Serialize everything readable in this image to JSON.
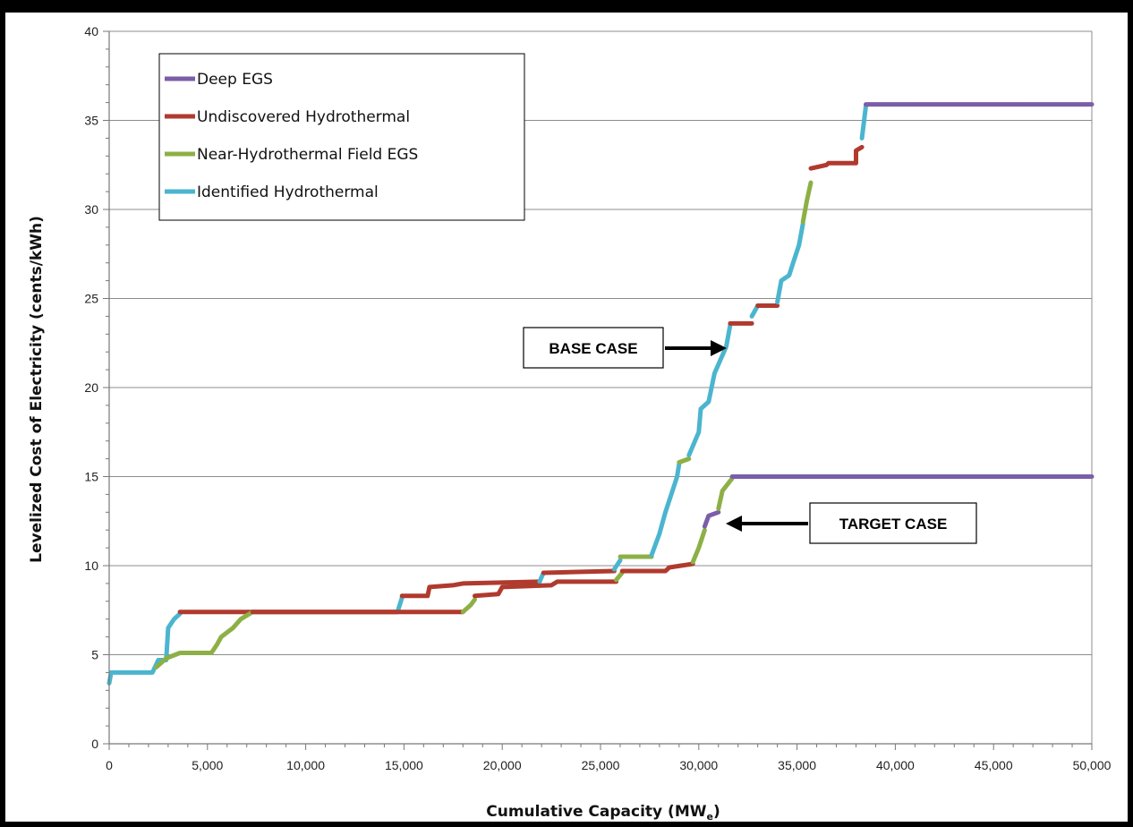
{
  "chart_data": {
    "type": "line",
    "xlabel": "Cumulative Capacity (MW",
    "xlabel_sub": "e",
    "xlabel_end": ")",
    "ylabel": "Levelized Cost of Electricity (cents/kWh)",
    "xlim": [
      0,
      50000
    ],
    "ylim": [
      0,
      40
    ],
    "x_ticks": [
      0,
      5000,
      10000,
      15000,
      20000,
      25000,
      30000,
      35000,
      40000,
      45000,
      50000
    ],
    "x_tick_labels": [
      "0",
      "5,000",
      "10,000",
      "15,000",
      "20,000",
      "25,000",
      "30,000",
      "35,000",
      "40,000",
      "45,000",
      "50,000"
    ],
    "y_ticks": [
      0,
      5,
      10,
      15,
      20,
      25,
      30,
      35,
      40
    ],
    "y_tick_labels": [
      "0",
      "5",
      "10",
      "15",
      "20",
      "25",
      "30",
      "35",
      "40"
    ],
    "grid": "horizontal",
    "legend_position": "top-left",
    "legend": [
      {
        "label": "Deep EGS",
        "color": "#7b5ea7"
      },
      {
        "label": "Undiscovered Hydrothermal",
        "color": "#b03a2e"
      },
      {
        "label": "Near-Hydrothermal Field EGS",
        "color": "#8db046"
      },
      {
        "label": "Identified Hydrothermal",
        "color": "#4bb5cf"
      }
    ],
    "annotations": [
      {
        "label": "BASE CASE",
        "points_to": [
          31600,
          22.3
        ]
      },
      {
        "label": "TARGET CASE",
        "points_to": [
          31000,
          12.5
        ]
      }
    ],
    "curves": [
      {
        "name": "BASE CASE",
        "segments": [
          {
            "color": "#4bb5cf",
            "points": [
              [
                0,
                3.4
              ],
              [
                100,
                4.0
              ],
              [
                2200,
                4.0
              ],
              [
                2500,
                4.7
              ],
              [
                2900,
                4.7
              ],
              [
                3000,
                6.5
              ],
              [
                3300,
                7.0
              ],
              [
                3600,
                7.3
              ]
            ]
          },
          {
            "color": "#b03a2e",
            "points": [
              [
                3600,
                7.4
              ],
              [
                14700,
                7.4
              ]
            ]
          },
          {
            "color": "#4bb5cf",
            "points": [
              [
                14700,
                7.5
              ],
              [
                14900,
                8.2
              ]
            ]
          },
          {
            "color": "#b03a2e",
            "points": [
              [
                14900,
                8.3
              ],
              [
                16200,
                8.3
              ],
              [
                16300,
                8.8
              ],
              [
                17500,
                8.9
              ],
              [
                18000,
                9.0
              ],
              [
                21900,
                9.1
              ]
            ]
          },
          {
            "color": "#4bb5cf",
            "points": [
              [
                21900,
                9.1
              ],
              [
                22100,
                9.6
              ]
            ]
          },
          {
            "color": "#b03a2e",
            "points": [
              [
                22100,
                9.6
              ],
              [
                25700,
                9.7
              ]
            ]
          },
          {
            "color": "#4bb5cf",
            "points": [
              [
                25700,
                9.8
              ],
              [
                26000,
                10.3
              ]
            ]
          },
          {
            "color": "#8db046",
            "points": [
              [
                26000,
                10.5
              ],
              [
                27600,
                10.5
              ]
            ]
          },
          {
            "color": "#4bb5cf",
            "points": [
              [
                27600,
                10.6
              ],
              [
                28000,
                11.8
              ],
              [
                28300,
                13.0
              ],
              [
                28600,
                14.0
              ],
              [
                28900,
                15.0
              ],
              [
                29000,
                15.7
              ]
            ]
          },
          {
            "color": "#8db046",
            "points": [
              [
                29000,
                15.8
              ],
              [
                29500,
                16.0
              ]
            ]
          },
          {
            "color": "#4bb5cf",
            "points": [
              [
                29500,
                16.2
              ],
              [
                30000,
                17.5
              ],
              [
                30100,
                18.8
              ],
              [
                30500,
                19.2
              ],
              [
                30800,
                20.8
              ],
              [
                31400,
                22.3
              ],
              [
                31600,
                23.5
              ]
            ]
          },
          {
            "color": "#b03a2e",
            "points": [
              [
                31600,
                23.6
              ],
              [
                32700,
                23.6
              ]
            ]
          },
          {
            "color": "#4bb5cf",
            "points": [
              [
                32700,
                24.0
              ],
              [
                33000,
                24.6
              ]
            ]
          },
          {
            "color": "#b03a2e",
            "points": [
              [
                33000,
                24.6
              ],
              [
                34000,
                24.6
              ]
            ]
          },
          {
            "color": "#4bb5cf",
            "points": [
              [
                34000,
                24.8
              ],
              [
                34200,
                26.0
              ],
              [
                34600,
                26.3
              ],
              [
                34800,
                27.0
              ],
              [
                35100,
                28.0
              ],
              [
                35300,
                29.2
              ]
            ]
          },
          {
            "color": "#8db046",
            "points": [
              [
                35300,
                29.3
              ],
              [
                35500,
                30.5
              ],
              [
                35700,
                31.5
              ]
            ]
          },
          {
            "color": "#b03a2e",
            "points": [
              [
                35700,
                32.3
              ],
              [
                36500,
                32.5
              ],
              [
                36600,
                32.6
              ],
              [
                38000,
                32.6
              ],
              [
                38000,
                33.3
              ],
              [
                38300,
                33.5
              ]
            ]
          },
          {
            "color": "#4bb5cf",
            "points": [
              [
                38300,
                34.0
              ],
              [
                38500,
                35.8
              ]
            ]
          },
          {
            "color": "#7b5ea7",
            "points": [
              [
                38500,
                35.9
              ],
              [
                50000,
                35.9
              ]
            ]
          }
        ]
      },
      {
        "name": "TARGET CASE",
        "segments": [
          {
            "color": "#8db046",
            "points": [
              [
                2400,
                4.3
              ],
              [
                2900,
                4.8
              ],
              [
                3600,
                5.1
              ],
              [
                5200,
                5.1
              ],
              [
                5500,
                5.6
              ],
              [
                5700,
                6.0
              ],
              [
                6300,
                6.5
              ],
              [
                6700,
                7.0
              ],
              [
                7300,
                7.4
              ]
            ]
          },
          {
            "color": "#b03a2e",
            "points": [
              [
                7300,
                7.4
              ],
              [
                18000,
                7.4
              ]
            ]
          },
          {
            "color": "#8db046",
            "points": [
              [
                18000,
                7.4
              ],
              [
                18400,
                7.8
              ],
              [
                18600,
                8.1
              ]
            ]
          },
          {
            "color": "#b03a2e",
            "points": [
              [
                18600,
                8.3
              ],
              [
                19800,
                8.4
              ],
              [
                20000,
                8.8
              ],
              [
                22500,
                8.9
              ],
              [
                22800,
                9.1
              ],
              [
                25800,
                9.1
              ]
            ]
          },
          {
            "color": "#8db046",
            "points": [
              [
                25800,
                9.2
              ],
              [
                26100,
                9.6
              ]
            ]
          },
          {
            "color": "#b03a2e",
            "points": [
              [
                26100,
                9.7
              ],
              [
                28300,
                9.7
              ],
              [
                28500,
                9.9
              ],
              [
                29700,
                10.1
              ]
            ]
          },
          {
            "color": "#8db046",
            "points": [
              [
                29700,
                10.2
              ],
              [
                30000,
                11.0
              ],
              [
                30300,
                12.0
              ]
            ]
          },
          {
            "color": "#7b5ea7",
            "points": [
              [
                30300,
                12.2
              ],
              [
                30500,
                12.8
              ],
              [
                31000,
                13.0
              ]
            ]
          },
          {
            "color": "#8db046",
            "points": [
              [
                31000,
                13.2
              ],
              [
                31200,
                14.2
              ],
              [
                31700,
                14.9
              ]
            ]
          },
          {
            "color": "#7b5ea7",
            "points": [
              [
                31700,
                15.0
              ],
              [
                50000,
                15.0
              ]
            ]
          }
        ]
      }
    ]
  }
}
